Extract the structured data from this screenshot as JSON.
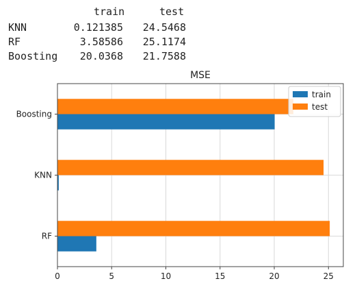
{
  "table": {
    "columns": [
      "train",
      "test"
    ],
    "rows": [
      {
        "label": "KNN",
        "values": [
          "0.121385",
          "24.5468"
        ]
      },
      {
        "label": "RF",
        "values": [
          "3.58586",
          "25.1174"
        ]
      },
      {
        "label": "Boosting",
        "values": [
          "20.0368",
          "21.7588"
        ]
      }
    ]
  },
  "chart_data": {
    "type": "bar",
    "orientation": "horizontal",
    "title": "MSE",
    "categories": [
      "RF",
      "KNN",
      "Boosting"
    ],
    "series": [
      {
        "name": "train",
        "values": [
          3.58586,
          0.121385,
          20.0368
        ],
        "color": "#1f77b4"
      },
      {
        "name": "test",
        "values": [
          25.1174,
          24.5468,
          21.7588
        ],
        "color": "#ff7f0e"
      }
    ],
    "xlim": [
      0,
      26.37
    ],
    "xticks": [
      0,
      5,
      10,
      15,
      20,
      25
    ],
    "grid": true,
    "legend_position": "top-right"
  }
}
